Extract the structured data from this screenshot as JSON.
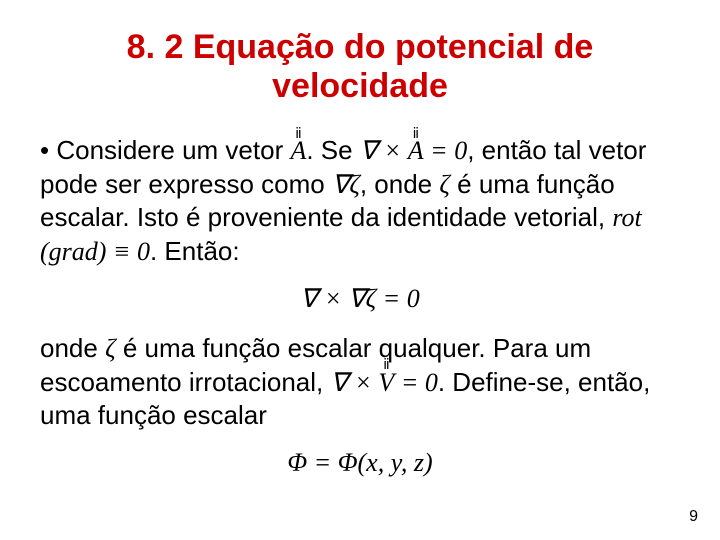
{
  "title": {
    "line1": "8. 2 Equação do potencial de",
    "line2": "velocidade",
    "color": "#cc0000",
    "fontsize_pt": 34
  },
  "body": {
    "fontsize_pt": 26,
    "color": "#000000",
    "bullet": "•",
    "p1_a": "Considere um vetor ",
    "p1_b": ". Se ",
    "p1_c": ", então tal vetor pode ser expresso como ",
    "p1_d": ", onde ",
    "p1_e": " é uma função escalar. Isto é proveniente da identidade vetorial, ",
    "p1_f": ". Então:",
    "eq1": "∇ × ∇ζ = 0",
    "p2_a": "onde ",
    "p2_b": " é uma função escalar qualquer. Para um escoamento irrotacional, ",
    "p2_c": ". Define-se, então, uma função escalar",
    "eq2": "Φ = Φ(x, y, z)"
  },
  "math": {
    "vec_A": "A",
    "curl_A_zero_pre": "∇ × ",
    "curl_A_zero_post": " = 0",
    "grad_zeta": "∇ζ",
    "zeta": "ζ",
    "rot_grad": "rot (grad) ≡ 0",
    "curl_V_pre": "∇ × ",
    "vec_V": "V",
    "curl_V_post": " = 0"
  },
  "page_number": "9",
  "page_number_fontsize_pt": 16,
  "background_color": "#ffffff"
}
